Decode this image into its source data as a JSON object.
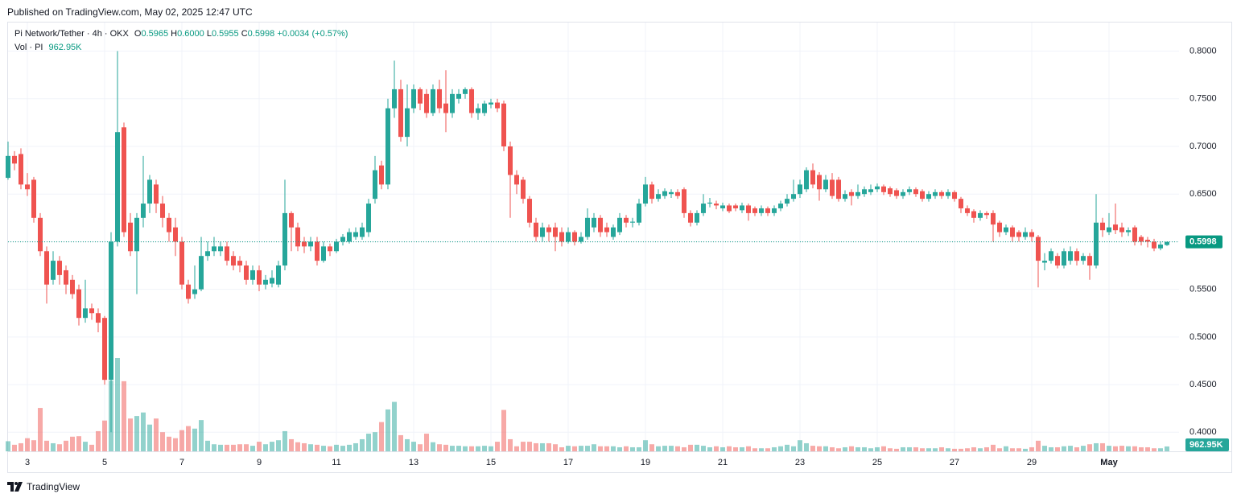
{
  "header": {
    "published": "Published on TradingView.com, May 02, 2025 12:47 UTC",
    "brand": "TradingView"
  },
  "chart_data": {
    "type": "candlestick",
    "symbol": "Pi Network/Tether · 4h · OKX",
    "ohlc_legend": {
      "o_label": "O",
      "open": "0.5965",
      "h_label": "H",
      "high": "0.6000",
      "l_label": "L",
      "low": "0.5955",
      "c_label": "C",
      "close": "0.5998",
      "change": "+0.0034 (+0.57%)"
    },
    "volume_legend": {
      "name": "Vol · PI",
      "value": "962.95K"
    },
    "up_color": "#26a69a",
    "down_color": "#ef5350",
    "open": [
      0.667,
      0.69,
      0.692,
      0.66,
      0.665,
      0.625,
      0.59,
      0.56,
      0.58,
      0.57,
      0.56,
      0.55,
      0.52,
      0.53,
      0.525,
      0.52,
      0.455,
      0.6,
      0.72,
      0.62,
      0.59,
      0.625,
      0.64,
      0.66,
      0.64,
      0.625,
      0.615,
      0.6,
      0.555,
      0.545,
      0.55,
      0.585,
      0.59,
      0.59,
      0.595,
      0.585,
      0.58,
      0.575,
      0.56,
      0.57,
      0.555,
      0.556,
      0.555,
      0.575,
      0.63,
      0.615,
      0.6,
      0.595,
      0.6,
      0.58,
      0.595,
      0.59,
      0.6,
      0.6,
      0.605,
      0.605,
      0.61,
      0.645,
      0.68,
      0.66,
      0.74,
      0.76,
      0.71,
      0.74,
      0.76,
      0.755,
      0.735,
      0.76,
      0.745,
      0.735,
      0.75,
      0.755,
      0.76,
      0.735,
      0.735,
      0.744,
      0.746,
      0.745,
      0.7,
      0.67,
      0.665,
      0.645,
      0.62,
      0.605,
      0.615,
      0.615,
      0.61,
      0.6,
      0.61,
      0.6,
      0.605,
      0.615,
      0.625,
      0.615,
      0.605,
      0.61,
      0.625,
      0.62,
      0.62,
      0.64,
      0.66,
      0.645,
      0.648,
      0.65,
      0.652,
      0.655,
      0.63,
      0.62,
      0.63,
      0.64,
      0.64,
      0.635,
      0.638,
      0.638,
      0.633,
      0.638,
      0.635,
      0.63,
      0.635,
      0.63,
      0.635,
      0.64,
      0.645,
      0.65,
      0.655,
      0.675,
      0.67,
      0.655,
      0.665,
      0.665,
      0.645,
      0.652,
      0.648,
      0.65,
      0.652,
      0.655,
      0.658,
      0.656,
      0.654,
      0.648,
      0.652,
      0.655,
      0.653,
      0.645,
      0.648,
      0.652,
      0.648,
      0.652,
      0.645,
      0.635,
      0.632,
      0.625,
      0.63,
      0.63,
      0.62,
      0.61,
      0.615,
      0.61,
      0.605,
      0.61,
      0.605,
      0.578,
      0.58,
      0.585,
      0.575,
      0.58,
      0.59,
      0.58,
      0.585,
      0.575,
      0.62,
      0.61,
      0.618,
      0.615,
      0.61,
      0.615,
      0.605,
      0.602,
      0.6,
      0.593,
      0.5965
    ],
    "high": [
      0.705,
      0.695,
      0.698,
      0.672,
      0.668,
      0.63,
      0.595,
      0.59,
      0.585,
      0.575,
      0.565,
      0.555,
      0.56,
      0.535,
      0.53,
      0.522,
      0.61,
      0.8,
      0.725,
      0.63,
      0.63,
      0.69,
      0.67,
      0.665,
      0.648,
      0.63,
      0.625,
      0.605,
      0.56,
      0.575,
      0.605,
      0.6,
      0.605,
      0.6,
      0.6,
      0.59,
      0.585,
      0.58,
      0.575,
      0.575,
      0.565,
      0.57,
      0.58,
      0.665,
      0.632,
      0.62,
      0.605,
      0.605,
      0.605,
      0.6,
      0.598,
      0.603,
      0.608,
      0.614,
      0.615,
      0.62,
      0.645,
      0.69,
      0.685,
      0.75,
      0.79,
      0.77,
      0.765,
      0.765,
      0.762,
      0.76,
      0.765,
      0.77,
      0.78,
      0.76,
      0.76,
      0.762,
      0.762,
      0.745,
      0.748,
      0.75,
      0.75,
      0.748,
      0.705,
      0.675,
      0.668,
      0.648,
      0.625,
      0.62,
      0.618,
      0.62,
      0.615,
      0.615,
      0.612,
      0.61,
      0.635,
      0.63,
      0.628,
      0.62,
      0.618,
      0.63,
      0.628,
      0.625,
      0.645,
      0.668,
      0.663,
      0.655,
      0.656,
      0.655,
      0.655,
      0.657,
      0.633,
      0.633,
      0.65,
      0.646,
      0.643,
      0.641,
      0.64,
      0.64,
      0.641,
      0.64,
      0.637,
      0.638,
      0.637,
      0.638,
      0.643,
      0.65,
      0.665,
      0.665,
      0.678,
      0.682,
      0.673,
      0.67,
      0.672,
      0.668,
      0.654,
      0.655,
      0.66,
      0.658,
      0.66,
      0.661,
      0.66,
      0.658,
      0.656,
      0.655,
      0.658,
      0.657,
      0.655,
      0.653,
      0.655,
      0.654,
      0.655,
      0.654,
      0.647,
      0.638,
      0.634,
      0.633,
      0.632,
      0.633,
      0.622,
      0.618,
      0.617,
      0.612,
      0.615,
      0.613,
      0.607,
      0.588,
      0.593,
      0.588,
      0.593,
      0.595,
      0.593,
      0.588,
      0.588,
      0.65,
      0.625,
      0.63,
      0.64,
      0.62,
      0.615,
      0.617,
      0.607,
      0.605,
      0.603,
      0.6,
      0.6
    ],
    "low": [
      0.665,
      0.675,
      0.655,
      0.648,
      0.62,
      0.585,
      0.535,
      0.555,
      0.555,
      0.545,
      0.54,
      0.512,
      0.515,
      0.518,
      0.505,
      0.45,
      0.4,
      0.595,
      0.605,
      0.585,
      0.545,
      0.615,
      0.63,
      0.63,
      0.615,
      0.6,
      0.585,
      0.55,
      0.535,
      0.54,
      0.548,
      0.58,
      0.585,
      0.585,
      0.575,
      0.57,
      0.568,
      0.555,
      0.555,
      0.548,
      0.55,
      0.552,
      0.552,
      0.57,
      0.59,
      0.59,
      0.588,
      0.59,
      0.575,
      0.578,
      0.585,
      0.588,
      0.596,
      0.598,
      0.602,
      0.602,
      0.605,
      0.64,
      0.655,
      0.655,
      0.73,
      0.705,
      0.7,
      0.735,
      0.738,
      0.73,
      0.732,
      0.735,
      0.715,
      0.73,
      0.745,
      0.75,
      0.73,
      0.728,
      0.732,
      0.74,
      0.736,
      0.695,
      0.625,
      0.65,
      0.64,
      0.615,
      0.6,
      0.6,
      0.6,
      0.59,
      0.595,
      0.598,
      0.596,
      0.598,
      0.602,
      0.61,
      0.605,
      0.605,
      0.602,
      0.607,
      0.615,
      0.615,
      0.617,
      0.637,
      0.64,
      0.642,
      0.645,
      0.646,
      0.645,
      0.625,
      0.616,
      0.617,
      0.627,
      0.636,
      0.634,
      0.632,
      0.63,
      0.632,
      0.63,
      0.622,
      0.627,
      0.627,
      0.627,
      0.627,
      0.632,
      0.637,
      0.642,
      0.646,
      0.652,
      0.656,
      0.643,
      0.652,
      0.645,
      0.642,
      0.642,
      0.638,
      0.645,
      0.647,
      0.649,
      0.652,
      0.649,
      0.647,
      0.645,
      0.645,
      0.649,
      0.647,
      0.642,
      0.642,
      0.645,
      0.645,
      0.645,
      0.642,
      0.63,
      0.627,
      0.62,
      0.622,
      0.624,
      0.6,
      0.605,
      0.607,
      0.6,
      0.6,
      0.602,
      0.6,
      0.552,
      0.57,
      0.577,
      0.572,
      0.572,
      0.576,
      0.575,
      0.576,
      0.56,
      0.572,
      0.605,
      0.607,
      0.608,
      0.605,
      0.606,
      0.596,
      0.596,
      0.594,
      0.59,
      0.591,
      0.5955
    ],
    "close": [
      0.69,
      0.682,
      0.66,
      0.655,
      0.625,
      0.59,
      0.555,
      0.58,
      0.565,
      0.555,
      0.545,
      0.52,
      0.53,
      0.525,
      0.515,
      0.455,
      0.6,
      0.715,
      0.61,
      0.59,
      0.625,
      0.64,
      0.665,
      0.64,
      0.625,
      0.61,
      0.6,
      0.555,
      0.54,
      0.55,
      0.585,
      0.59,
      0.595,
      0.595,
      0.58,
      0.575,
      0.575,
      0.56,
      0.57,
      0.555,
      0.56,
      0.562,
      0.575,
      0.63,
      0.615,
      0.595,
      0.595,
      0.6,
      0.58,
      0.595,
      0.59,
      0.6,
      0.605,
      0.61,
      0.61,
      0.615,
      0.64,
      0.675,
      0.66,
      0.74,
      0.76,
      0.71,
      0.74,
      0.76,
      0.745,
      0.735,
      0.76,
      0.74,
      0.735,
      0.755,
      0.755,
      0.76,
      0.735,
      0.74,
      0.745,
      0.746,
      0.74,
      0.7,
      0.67,
      0.66,
      0.645,
      0.62,
      0.605,
      0.615,
      0.61,
      0.605,
      0.6,
      0.61,
      0.6,
      0.605,
      0.625,
      0.625,
      0.61,
      0.61,
      0.615,
      0.625,
      0.62,
      0.621,
      0.64,
      0.66,
      0.645,
      0.65,
      0.653,
      0.652,
      0.648,
      0.63,
      0.62,
      0.63,
      0.64,
      0.641,
      0.638,
      0.638,
      0.632,
      0.635,
      0.638,
      0.63,
      0.63,
      0.635,
      0.63,
      0.635,
      0.64,
      0.645,
      0.65,
      0.66,
      0.675,
      0.66,
      0.655,
      0.665,
      0.648,
      0.645,
      0.65,
      0.648,
      0.652,
      0.655,
      0.655,
      0.658,
      0.652,
      0.65,
      0.648,
      0.652,
      0.655,
      0.65,
      0.645,
      0.65,
      0.652,
      0.648,
      0.652,
      0.645,
      0.635,
      0.63,
      0.625,
      0.63,
      0.628,
      0.618,
      0.61,
      0.615,
      0.605,
      0.605,
      0.61,
      0.605,
      0.58,
      0.58,
      0.59,
      0.575,
      0.59,
      0.59,
      0.58,
      0.585,
      0.575,
      0.62,
      0.612,
      0.615,
      0.612,
      0.61,
      0.612,
      0.6,
      0.6,
      0.6,
      0.593,
      0.597,
      0.5998
    ],
    "volume": [
      2000,
      1300,
      1600,
      2600,
      2200,
      8600,
      2100,
      1600,
      1400,
      2100,
      2900,
      3000,
      1900,
      1300,
      4000,
      6100,
      14000,
      18500,
      13900,
      6500,
      7000,
      7700,
      5300,
      6500,
      3800,
      2900,
      2600,
      4200,
      5000,
      4500,
      6200,
      2100,
      1400,
      1300,
      1300,
      1300,
      1400,
      1400,
      1100,
      1900,
      1400,
      1900,
      2200,
      4000,
      2400,
      1800,
      1600,
      1400,
      1300,
      1100,
      1000,
      1300,
      1100,
      1300,
      1600,
      2400,
      3500,
      3800,
      5800,
      8300,
      9800,
      3200,
      2400,
      1900,
      1400,
      3500,
      1800,
      1400,
      1300,
      1100,
      1100,
      1000,
      1000,
      1000,
      1100,
      1000,
      1900,
      8200,
      2400,
      1000,
      1900,
      1900,
      1600,
      1600,
      1600,
      1400,
      800,
      1100,
      1000,
      1100,
      1100,
      1400,
      1000,
      1000,
      1000,
      800,
      1000,
      800,
      800,
      2200,
      1400,
      1000,
      1100,
      1100,
      1000,
      800,
      1300,
      1300,
      1100,
      800,
      1000,
      800,
      1000,
      800,
      800,
      1000,
      600,
      600,
      600,
      800,
      1000,
      1300,
      1000,
      2200,
      1600,
      1100,
      1000,
      1000,
      800,
      600,
      800,
      1000,
      800,
      800,
      600,
      800,
      1000,
      600,
      500,
      800,
      800,
      800,
      600,
      600,
      600,
      800,
      600,
      500,
      500,
      600,
      800,
      600,
      800,
      1300,
      600,
      1000,
      600,
      600,
      500,
      800,
      2100,
      1100,
      800,
      800,
      1000,
      1100,
      800,
      1100,
      1400,
      1600,
      1600,
      1100,
      1000,
      1100,
      1000,
      1000,
      800,
      800,
      600,
      600,
      962.95
    ],
    "volume_value_label": "962.95K",
    "last_price": {
      "value": 0.5998,
      "label": "0.5998"
    },
    "ylim": [
      0.38,
      0.83
    ],
    "yticks": [
      {
        "value": 0.4,
        "label": "0.4000"
      },
      {
        "value": 0.45,
        "label": "0.4500"
      },
      {
        "value": 0.5,
        "label": "0.5000"
      },
      {
        "value": 0.55,
        "label": "0.5500"
      },
      {
        "value": 0.6,
        "label": "0.6000"
      },
      {
        "value": 0.65,
        "label": "0.6500"
      },
      {
        "value": 0.7,
        "label": "0.7000"
      },
      {
        "value": 0.75,
        "label": "0.7500"
      },
      {
        "value": 0.8,
        "label": "0.8000"
      }
    ],
    "xtick_labels": [
      "3",
      "5",
      "7",
      "9",
      "11",
      "13",
      "15",
      "17",
      "19",
      "21",
      "23",
      "25",
      "27",
      "29",
      "May"
    ],
    "grid": true
  }
}
